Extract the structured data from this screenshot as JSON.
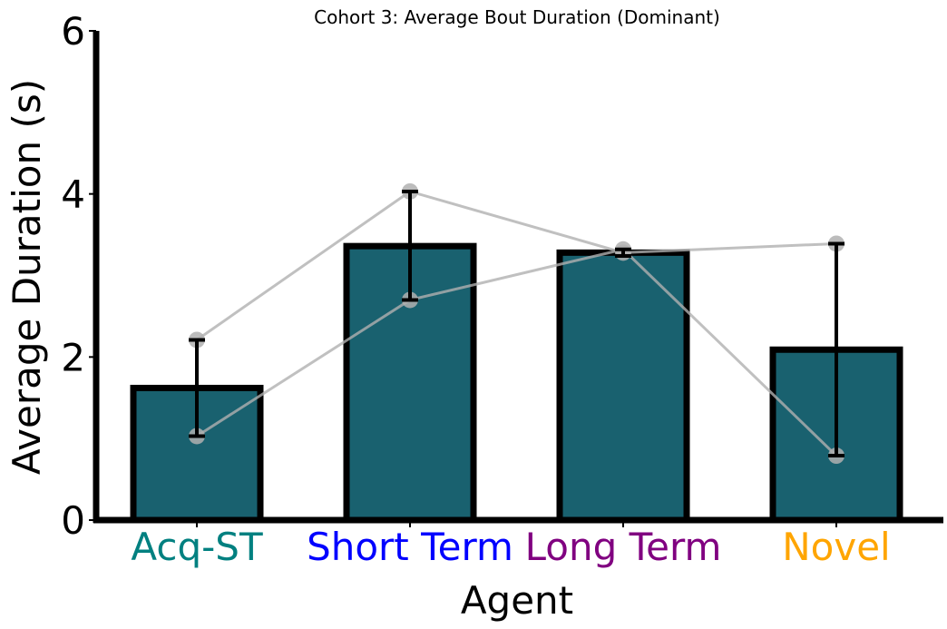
{
  "chart_data": {
    "type": "bar",
    "title": "Cohort 3: Average Bout Duration (Dominant)",
    "xlabel": "Agent",
    "ylabel": "Average Duration (s)",
    "ylim": [
      0,
      6
    ],
    "yticks": [
      0,
      2,
      4,
      6
    ],
    "categories": [
      "Acq-ST",
      "Short Term",
      "Long Term",
      "Novel"
    ],
    "category_colors": [
      "#008080",
      "#0000ff",
      "#800080",
      "#ffa500"
    ],
    "values": [
      1.62,
      3.36,
      3.28,
      2.09
    ],
    "error_low": [
      1.03,
      2.7,
      3.24,
      0.79
    ],
    "error_high": [
      2.21,
      4.03,
      3.32,
      3.39
    ],
    "bar_color": "#19616f",
    "bar_edge_color": "#000000",
    "individual_series": [
      {
        "values": [
          2.21,
          4.03,
          3.28,
          3.39
        ]
      },
      {
        "values": [
          1.03,
          2.7,
          3.32,
          0.79
        ]
      }
    ],
    "individual_color": "#b0b0b0",
    "grid": false,
    "legend": "none"
  }
}
